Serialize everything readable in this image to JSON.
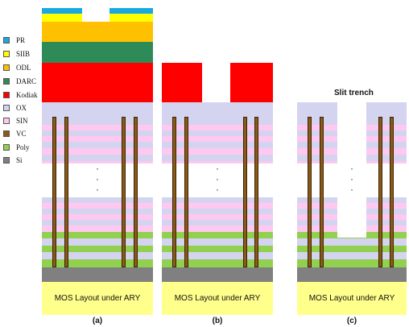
{
  "legend": [
    {
      "label": "PR",
      "color": "#19a8e0"
    },
    {
      "label": "SIIB",
      "color": "#ffff00"
    },
    {
      "label": "ODL",
      "color": "#ffc000"
    },
    {
      "label": "DARC",
      "color": "#2e8b57"
    },
    {
      "label": "Kodiak",
      "color": "#ff0000"
    },
    {
      "label": "OX",
      "color": "#d4d4f0"
    },
    {
      "label": "SIN",
      "color": "#ffc8f0"
    },
    {
      "label": "VC",
      "color": "#8b5a18"
    },
    {
      "label": "Poly",
      "color": "#92d050"
    },
    {
      "label": "Si",
      "color": "#808080"
    }
  ],
  "panels": [
    {
      "id": "a",
      "caption": "(a)",
      "mos_label": "MOS Layout under ARY",
      "dots": "·\n·\n·"
    },
    {
      "id": "b",
      "caption": "(b)",
      "mos_label": "MOS Layout under ARY",
      "dots": "·\n·\n·"
    },
    {
      "id": "c",
      "caption": "(c)",
      "mos_label": "MOS Layout under ARY",
      "dots": "·\n·\n·",
      "trench_label": "Slit trench"
    }
  ],
  "colors": {
    "pr": "#19a8e0",
    "siib": "#ffff00",
    "odl": "#ffc000",
    "darc": "#2e8b57",
    "kodiak": "#ff0000",
    "ox": "#d4d4f0",
    "sin": "#ffc8f0",
    "vc": "#8b5a18",
    "poly": "#92d050",
    "si": "#808080",
    "mos": "#ffff8c"
  }
}
